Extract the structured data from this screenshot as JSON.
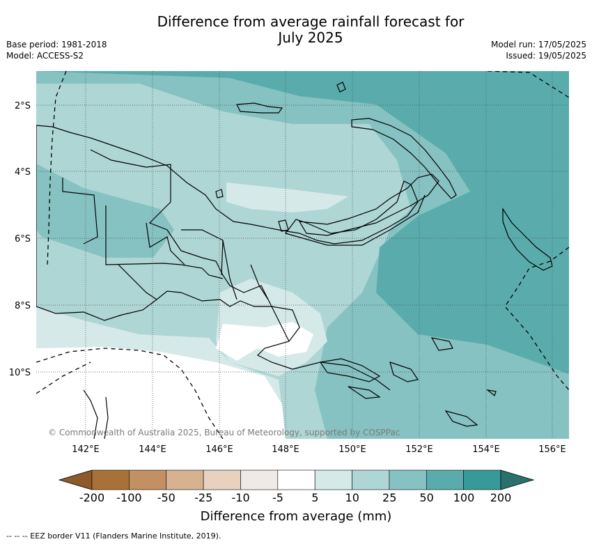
{
  "title_line1": "Difference from average rainfall forecast for",
  "title_line2": "July 2025",
  "base_period": "Base period: 1981-2018",
  "model": "Model: ACCESS-S2",
  "model_run": "Model run: 17/05/2025",
  "issued": "Issued: 19/05/2025",
  "lat_labels": [
    "2°S",
    "4°S",
    "6°S",
    "8°S",
    "10°S"
  ],
  "lon_labels": [
    "142°E",
    "144°E",
    "146°E",
    "148°E",
    "150°E",
    "152°E",
    "154°E",
    "156°E"
  ],
  "copyright": "© Commonwealth of Australia 2025, Bureau of Meteorology, supported by COSPPac",
  "colorbar": {
    "labels": [
      "-200",
      "-100",
      "-50",
      "-25",
      "-10",
      "-5",
      "5",
      "10",
      "25",
      "50",
      "100",
      "200"
    ],
    "colors": [
      "#8c5a2b",
      "#a87138",
      "#c29063",
      "#d6b290",
      "#e8d2bf",
      "#efeae6",
      "#ffffff",
      "#d5e9e8",
      "#aed6d5",
      "#86c2c1",
      "#5aacac",
      "#369a98",
      "#2a706c"
    ],
    "title": "Difference from average (mm)"
  },
  "eez_note": "--  --  -- EEZ border V11 (Flanders Marine Institute, 2019).",
  "legend_colors_map": {
    "band_5_10": "#d5e9e8",
    "band_10_25": "#aed6d5",
    "band_25_50": "#86c2c1",
    "band_50_100": "#5aacac"
  }
}
